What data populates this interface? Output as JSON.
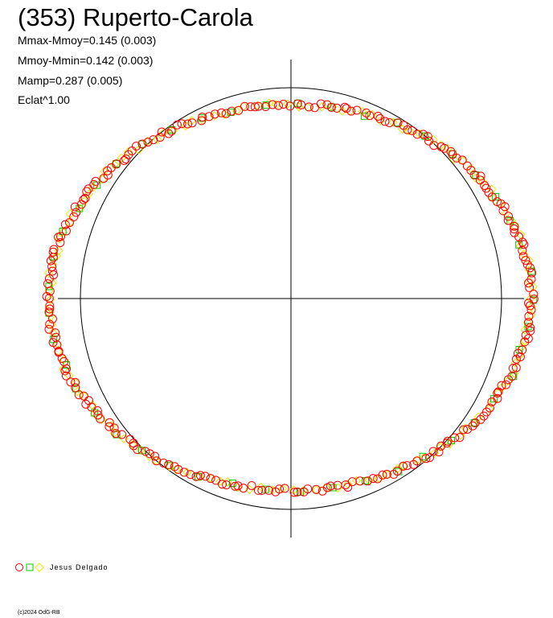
{
  "title": "(353) Ruperto-Carola",
  "stats": [
    "Mmax-Mmoy=0.145 (0.003)",
    "Mmoy-Mmin=0.142 (0.003)",
    "Mamp=0.287 (0.005)",
    "Eclat^1.00"
  ],
  "legend": {
    "label": "Jesus Delgado",
    "symbols": [
      "circle",
      "square",
      "diamond"
    ]
  },
  "copyright": "(c)2024 OdG-RB",
  "colors": {
    "background": "#ffffff",
    "axes": "#000000",
    "reference_circle": "#000000",
    "circle_marker": "#ff0000",
    "square_marker": "#00cc00",
    "diamond_marker": "#e8e800"
  },
  "chart_data": {
    "type": "scatter",
    "subtype": "polar lightcurve",
    "title": "(353) Ruperto-Carola",
    "axes": "crosshair through centre",
    "reference_circle_radius": 1.0,
    "curve": {
      "radius_x_right": 1.14,
      "radius_x_left": 1.15,
      "radius_y_top": 0.92,
      "radius_y_bottom": 0.91
    },
    "series": [
      {
        "marker": "circle",
        "color": "#ff0000",
        "point_count": 260
      },
      {
        "marker": "square",
        "color": "#00cc00",
        "point_count": 45
      },
      {
        "marker": "diamond",
        "color": "#e8e800",
        "point_count": 140
      }
    ]
  }
}
